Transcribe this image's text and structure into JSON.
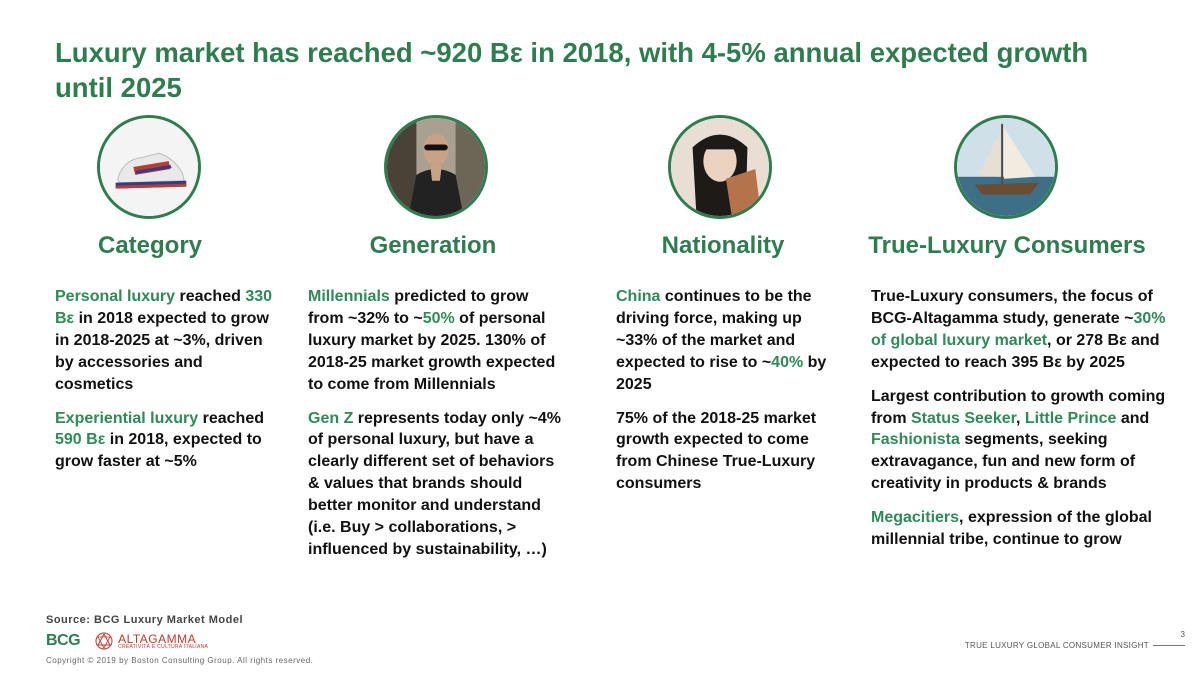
{
  "title": "Luxury market has reached ~920 Bε in 2018, with 4-5% annual expected growth until 2025",
  "columns": [
    {
      "heading": "Category",
      "icon": "sneaker-photo-icon",
      "paragraphs": [
        [
          {
            "t": "Personal luxury",
            "hl": true
          },
          {
            "t": " reached ",
            "hl": false
          },
          {
            "t": "330 Bε",
            "hl": true
          },
          {
            "t": " in 2018 expected to grow in 2018-2025 at ~3%, driven by accessories and cosmetics",
            "hl": false
          }
        ],
        [
          {
            "t": "Experiential luxury",
            "hl": true
          },
          {
            "t": " reached ",
            "hl": false
          },
          {
            "t": "590 Bε",
            "hl": true
          },
          {
            "t": " in 2018, expected to grow faster at ~5%",
            "hl": false
          }
        ]
      ]
    },
    {
      "heading": "Generation",
      "icon": "model-sunglasses-photo-icon",
      "paragraphs": [
        [
          {
            "t": "Millennials",
            "hl": true
          },
          {
            "t": " predicted to grow from ~32% to ~",
            "hl": false
          },
          {
            "t": "50%",
            "hl": true
          },
          {
            "t": " of personal luxury market by 2025. 130% of 2018-25 market growth expected to come from Millennials",
            "hl": false
          }
        ],
        [
          {
            "t": "Gen Z",
            "hl": true
          },
          {
            "t": " represents today only ~4% of personal luxury, but have a clearly different set of behaviors & values that brands should better monitor and understand (i.e. Buy > collaborations, > influenced by sustainability, …)",
            "hl": false
          }
        ]
      ]
    },
    {
      "heading": "Nationality",
      "icon": "asian-woman-photo-icon",
      "paragraphs": [
        [
          {
            "t": "China",
            "hl": true
          },
          {
            "t": " continues to be the driving force, making up ~33% of the market and expected to rise to ~",
            "hl": false
          },
          {
            "t": "40%",
            "hl": true
          },
          {
            "t": " by 2025",
            "hl": false
          }
        ],
        [
          {
            "t": "75% of the 2018-25 market growth expected to come from Chinese True-Luxury consumers",
            "hl": false
          }
        ]
      ]
    },
    {
      "heading": "True-Luxury Consumers",
      "icon": "sailboat-photo-icon",
      "paragraphs": [
        [
          {
            "t": "True-Luxury consumers, the focus of BCG-Altagamma study, generate ~",
            "hl": false
          },
          {
            "t": "30% of global luxury market",
            "hl": true
          },
          {
            "t": ", or 278 Bε and expected to reach 395 Bε by 2025",
            "hl": false
          }
        ],
        [
          {
            "t": "Largest contribution to growth coming from ",
            "hl": false
          },
          {
            "t": "Status Seeker",
            "hl": true
          },
          {
            "t": ", ",
            "hl": false
          },
          {
            "t": "Little Prince",
            "hl": true
          },
          {
            "t": " and ",
            "hl": false
          },
          {
            "t": "Fashionista",
            "hl": true
          },
          {
            "t": " segments, seeking extravagance, fun and new form of creativity in products & brands",
            "hl": false
          }
        ],
        [
          {
            "t": "Megacitiers",
            "hl": true
          },
          {
            "t": ", expression of the global millennial tribe, continue to grow",
            "hl": false
          }
        ]
      ]
    }
  ],
  "footer": {
    "source": "Source: BCG Luxury Market Model",
    "bcg_logo": "BCG",
    "altagamma_name": "ALTAGAMMA",
    "altagamma_sub": "CREATIVITÀ E CULTURA ITALIANA",
    "copyright": "Copyright © 2019 by Boston Consulting Group. All rights reserved.",
    "page_number": "3",
    "brand": "TRUE LUXURY GLOBAL CONSUMER INSIGHT"
  },
  "colors": {
    "accent": "#2e7d4f",
    "highlight": "#2e8b57"
  }
}
